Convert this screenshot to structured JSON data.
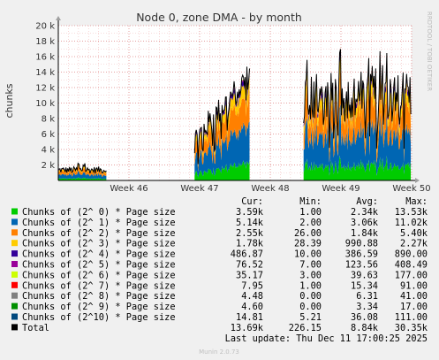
{
  "chart_data": {
    "type": "area",
    "title": "Node 0, zone DMA - by month",
    "ylabel": "chunks",
    "side_label": "RRDTOOL / TOBI OETIKER",
    "ylim": [
      0,
      20000
    ],
    "y_ticks": [
      {
        "value": 0,
        "label": ""
      },
      {
        "value": 2000,
        "label": "2 k"
      },
      {
        "value": 4000,
        "label": "4 k"
      },
      {
        "value": 6000,
        "label": "6 k"
      },
      {
        "value": 8000,
        "label": "8 k"
      },
      {
        "value": 10000,
        "label": "10 k"
      },
      {
        "value": 12000,
        "label": "12 k"
      },
      {
        "value": 14000,
        "label": "14 k"
      },
      {
        "value": 16000,
        "label": "16 k"
      },
      {
        "value": 18000,
        "label": "18 k"
      },
      {
        "value": 20000,
        "label": "20 k"
      }
    ],
    "x_ticks": [
      {
        "value": 7,
        "label": "Week 46"
      },
      {
        "value": 14,
        "label": "Week 47"
      },
      {
        "value": 21,
        "label": "Week 48"
      },
      {
        "value": 28,
        "label": "Week 49"
      },
      {
        "value": 35,
        "label": "Week 50"
      }
    ],
    "x_range": [
      0,
      35
    ],
    "segments": [
      [
        0,
        4.8
      ],
      [
        13.5,
        19.0
      ],
      [
        24.3,
        35
      ]
    ],
    "stack_fractions": [
      0.17,
      0.37,
      0.27,
      0.12,
      0.04,
      0.015,
      0.005
    ],
    "stack_colors": [
      "#00cc00",
      "#0066b3",
      "#ff8000",
      "#ffcc00",
      "#330099",
      "#990099",
      "#ccff00"
    ],
    "total_color": "#000000",
    "grid": true,
    "legend": {
      "headers": [
        "Cur:",
        "Min:",
        "Avg:",
        "Max:"
      ],
      "rows": [
        {
          "color": "#00cc00",
          "name": "Chunks of (2^ 0) * Page size",
          "cur": "3.59k",
          "min": "1.00",
          "avg": "2.34k",
          "max": "13.53k"
        },
        {
          "color": "#0066b3",
          "name": "Chunks of (2^ 1) * Page size",
          "cur": "5.14k",
          "min": "2.00",
          "avg": "3.06k",
          "max": "11.02k"
        },
        {
          "color": "#ff8000",
          "name": "Chunks of (2^ 2) * Page size",
          "cur": "2.55k",
          "min": "26.00",
          "avg": "1.84k",
          "max": "5.40k"
        },
        {
          "color": "#ffcc00",
          "name": "Chunks of (2^ 3) * Page size",
          "cur": "1.78k",
          "min": "28.39",
          "avg": "990.88",
          "max": "2.27k"
        },
        {
          "color": "#330099",
          "name": "Chunks of (2^ 4) * Page size",
          "cur": "486.87",
          "min": "10.00",
          "avg": "386.59",
          "max": "890.00"
        },
        {
          "color": "#990099",
          "name": "Chunks of (2^ 5) * Page size",
          "cur": "76.52",
          "min": "7.00",
          "avg": "123.56",
          "max": "408.49"
        },
        {
          "color": "#ccff00",
          "name": "Chunks of (2^ 6) * Page size",
          "cur": "35.17",
          "min": "3.00",
          "avg": "39.63",
          "max": "177.00"
        },
        {
          "color": "#ff0000",
          "name": "Chunks of (2^ 7) * Page size",
          "cur": "7.95",
          "min": "1.00",
          "avg": "15.34",
          "max": "91.00"
        },
        {
          "color": "#808080",
          "name": "Chunks of (2^ 8) * Page size",
          "cur": "4.48",
          "min": "0.00",
          "avg": "6.31",
          "max": "41.00"
        },
        {
          "color": "#008f00",
          "name": "Chunks of (2^ 9) * Page size",
          "cur": "4.60",
          "min": "0.00",
          "avg": "3.34",
          "max": "17.00"
        },
        {
          "color": "#00487d",
          "name": "Chunks of (2^10) * Page size",
          "cur": "14.81",
          "min": "5.21",
          "avg": "36.08",
          "max": "111.00"
        },
        {
          "color": "#000000",
          "name": "Total",
          "cur": "13.69k",
          "min": "226.15",
          "avg": "8.84k",
          "max": "30.35k"
        }
      ]
    }
  },
  "footer": {
    "last_update": "Last update: Thu Dec 11 17:00:25 2025",
    "munin": "Munin 2.0.73"
  }
}
